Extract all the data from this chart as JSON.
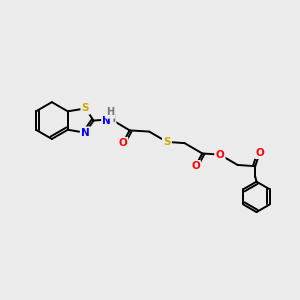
{
  "bg_color": "#ebebeb",
  "bond_color": "#000000",
  "atom_colors": {
    "S": "#ccaa00",
    "N": "#0000ff",
    "O": "#ff0000",
    "H": "#777777",
    "C": "#000000"
  },
  "figsize": [
    3.0,
    3.0
  ],
  "dpi": 100
}
